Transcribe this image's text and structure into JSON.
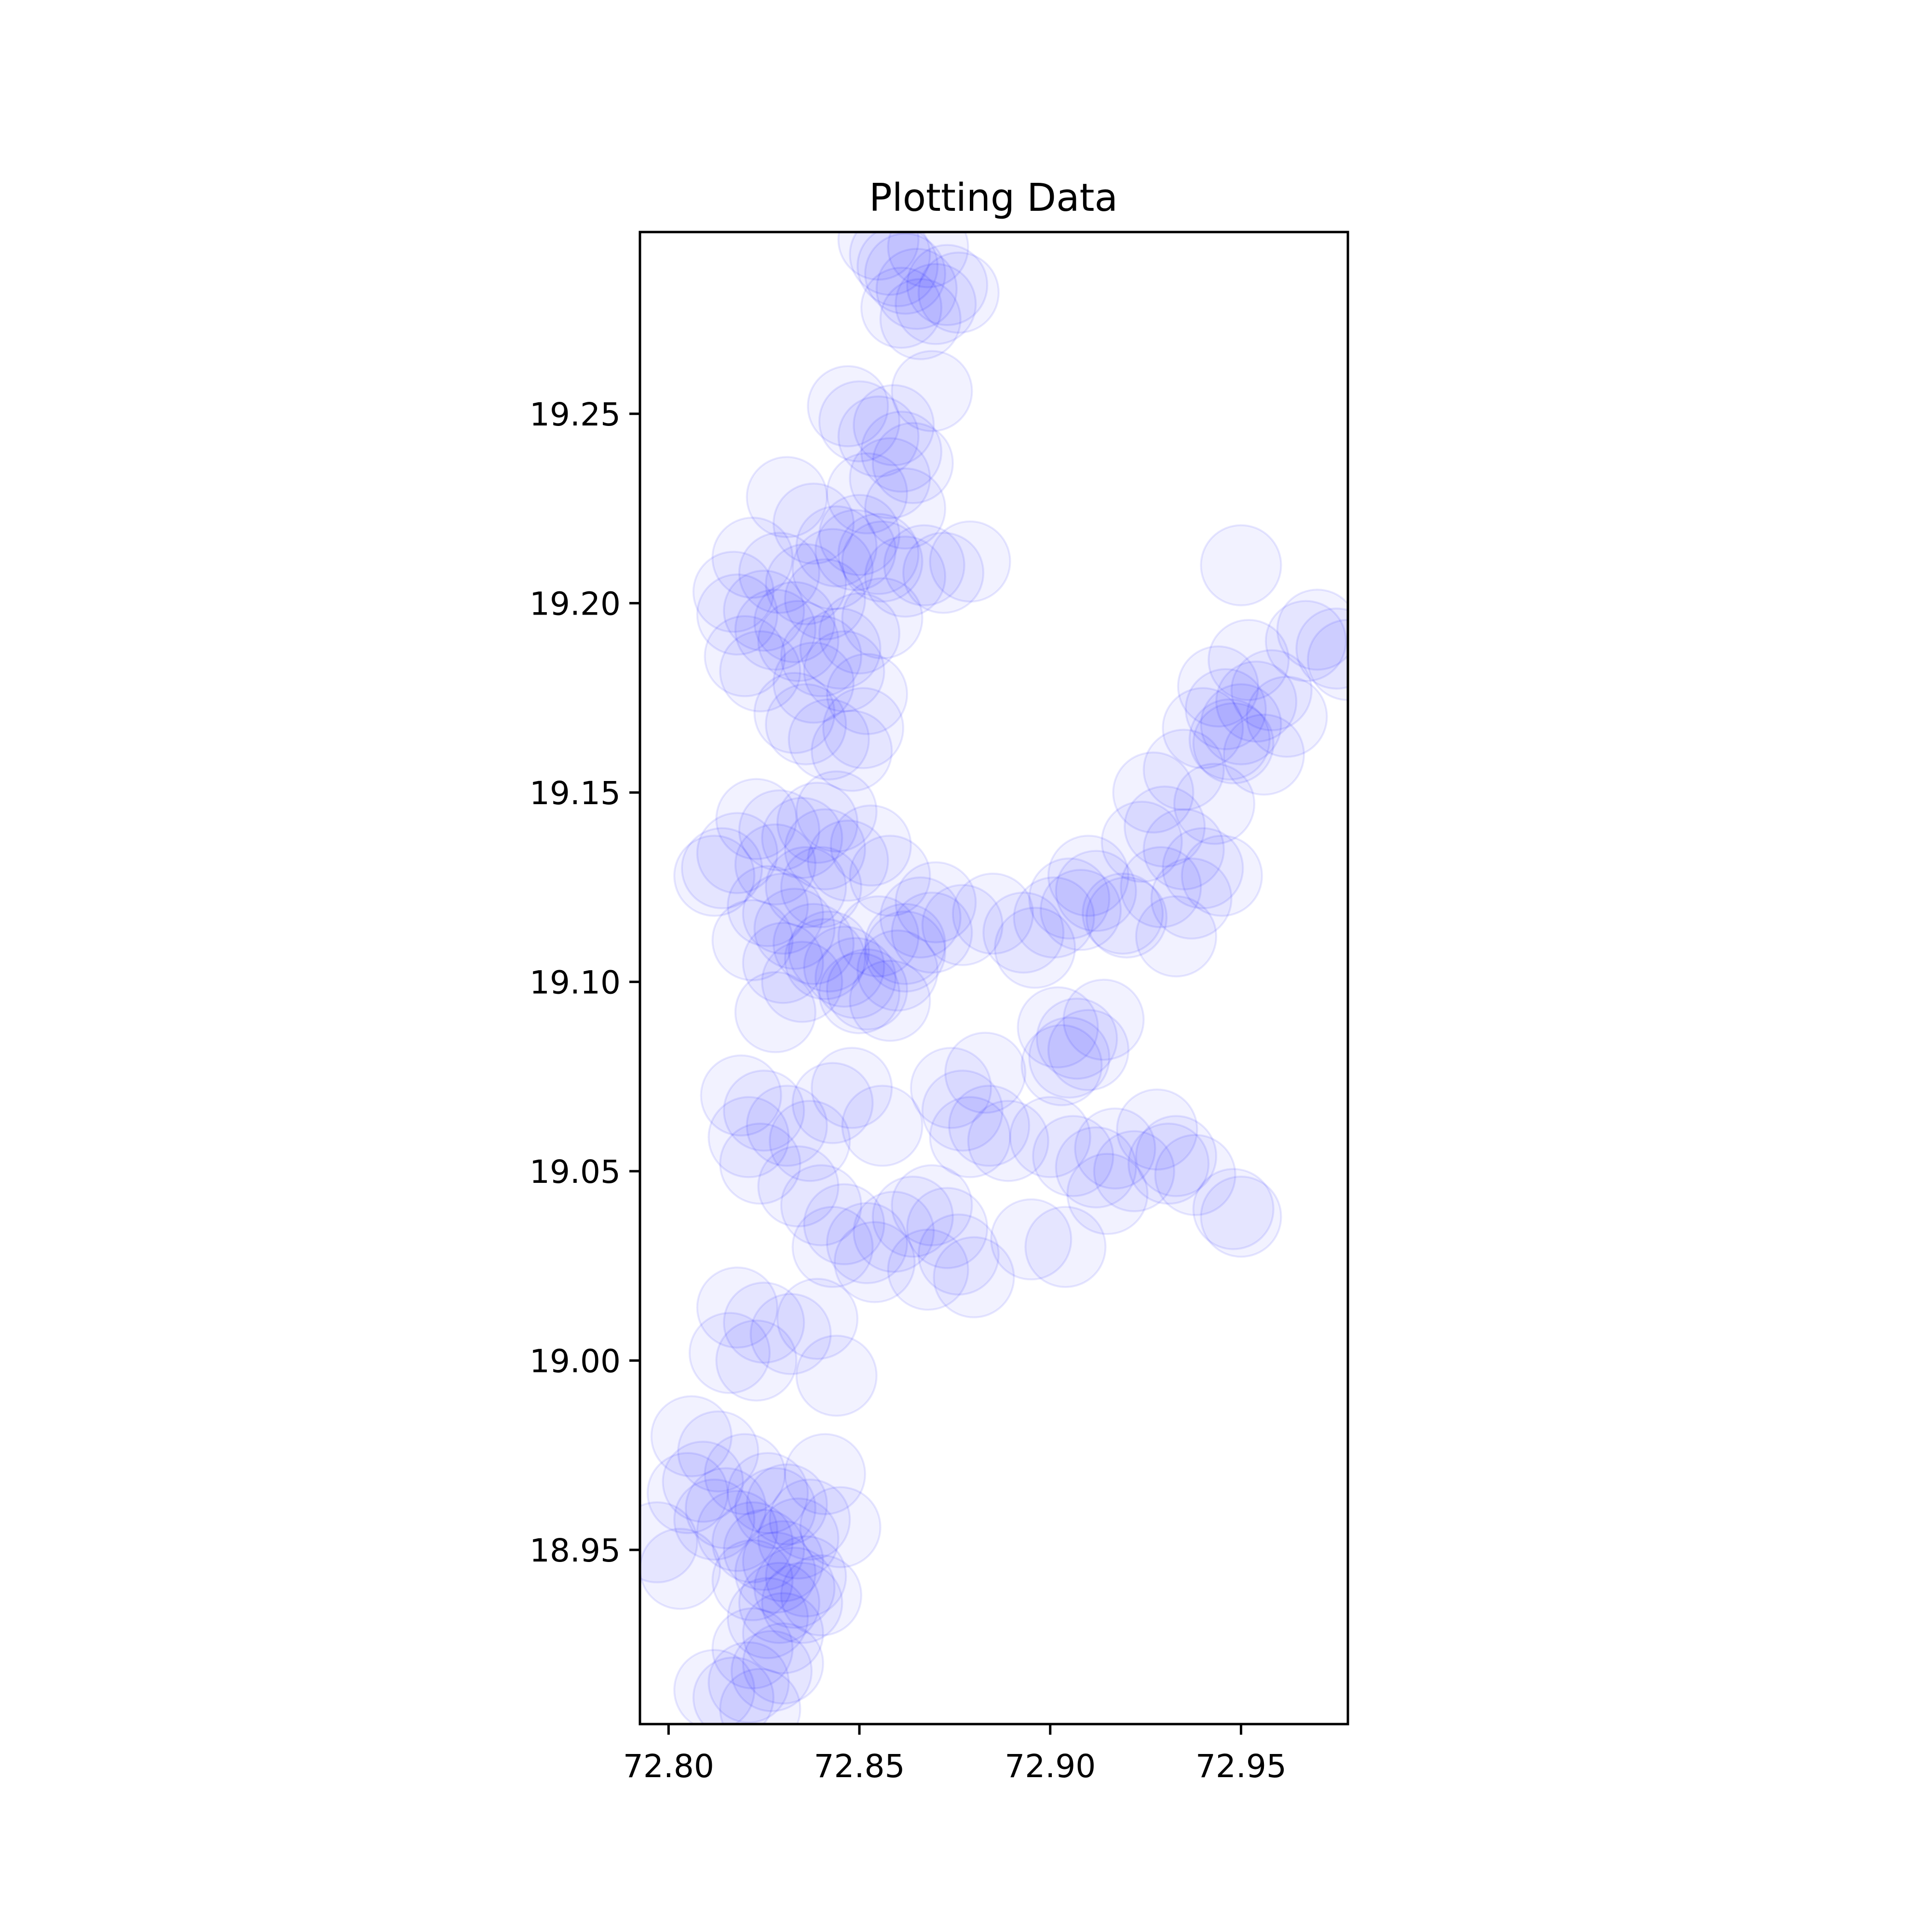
{
  "chart_data": {
    "type": "scatter",
    "title": "Plotting Data",
    "xlabel": "",
    "ylabel": "",
    "xlim": [
      72.7925,
      72.978
    ],
    "ylim": [
      18.904,
      19.298
    ],
    "grid": false,
    "legend": "none",
    "x_ticks": [
      "72.80",
      "72.85",
      "72.90",
      "72.95"
    ],
    "x_tick_values": [
      72.8,
      72.85,
      72.9,
      72.95
    ],
    "y_ticks": [
      "18.95",
      "19.00",
      "19.05",
      "19.10",
      "19.15",
      "19.20",
      "19.25"
    ],
    "y_tick_values": [
      18.95,
      19.0,
      19.05,
      19.1,
      19.15,
      19.2,
      19.25
    ],
    "marker": {
      "color": "#0000ff",
      "alpha": 0.05,
      "edgealpha": 0.09,
      "radius_data_x": 0.0105
    },
    "x": [
      72.862,
      72.865,
      72.87,
      72.858,
      72.861,
      72.866,
      72.873,
      72.855,
      72.86,
      72.868,
      72.876,
      72.85,
      72.855,
      72.861,
      72.847,
      72.858,
      72.864,
      72.852,
      72.859,
      72.869,
      72.838,
      72.844,
      72.85,
      72.856,
      72.831,
      72.862,
      72.822,
      72.829,
      72.836,
      72.843,
      72.849,
      72.817,
      72.825,
      72.833,
      72.841,
      72.855,
      72.862,
      72.867,
      72.872,
      72.879,
      72.828,
      72.834,
      72.84,
      72.845,
      72.85,
      72.82,
      72.838,
      72.846,
      72.852,
      72.824,
      72.856,
      72.818,
      72.836,
      72.842,
      72.848,
      72.851,
      72.833,
      72.823,
      72.829,
      72.835,
      72.841,
      72.847,
      72.818,
      72.828,
      72.839,
      72.853,
      72.814,
      72.858,
      72.844,
      72.812,
      72.836,
      72.826,
      72.833,
      72.838,
      72.841,
      72.846,
      72.849,
      72.852,
      72.858,
      72.822,
      72.83,
      72.855,
      72.862,
      72.866,
      72.87,
      72.877,
      72.885,
      72.84,
      72.83,
      72.835,
      72.842,
      72.828,
      72.862,
      72.869,
      72.86,
      72.85,
      72.819,
      72.825,
      72.831,
      72.837,
      72.843,
      72.821,
      72.848,
      72.824,
      72.856,
      72.834,
      72.84,
      72.846,
      72.852,
      72.859,
      72.864,
      72.869,
      72.873,
      72.843,
      72.854,
      72.868,
      72.876,
      72.88,
      72.818,
      72.825,
      72.832,
      72.839,
      72.816,
      72.823,
      72.844,
      72.806,
      72.813,
      72.82,
      72.826,
      72.831,
      72.837,
      72.834,
      72.828,
      72.845,
      72.841,
      72.809,
      72.822,
      72.797,
      72.803,
      72.812,
      72.818,
      72.825,
      72.83,
      72.836,
      72.815,
      72.829,
      72.833,
      72.822,
      72.805,
      72.826,
      72.83,
      72.835,
      72.822,
      72.828,
      72.84,
      72.827,
      72.821,
      72.817,
      72.83,
      72.824,
      72.812,
      72.877,
      72.884,
      72.889,
      72.874,
      72.879,
      72.883,
      72.893,
      72.901,
      72.905,
      72.908,
      72.912,
      72.919,
      72.896,
      72.91,
      72.902,
      72.907,
      72.91,
      72.903,
      72.914,
      72.905,
      72.9,
      72.906,
      72.912,
      72.917,
      72.922,
      72.928,
      72.933,
      72.938,
      72.948,
      72.895,
      72.904,
      72.915,
      72.931,
      72.95,
      72.924,
      72.93,
      72.935,
      72.94,
      72.929,
      72.937,
      72.945,
      72.92,
      72.933,
      72.943,
      72.927,
      72.935,
      72.94,
      72.946,
      72.95,
      72.954,
      72.958,
      72.962,
      72.948,
      72.956,
      72.952,
      72.944,
      72.97,
      72.975,
      72.978,
      72.967,
      72.95,
      72.947
    ],
    "y": [
      19.287,
      19.283,
      19.279,
      19.292,
      19.278,
      19.275,
      19.284,
      19.296,
      19.289,
      19.294,
      19.282,
      19.248,
      19.244,
      19.24,
      19.252,
      19.233,
      19.237,
      19.229,
      19.247,
      19.256,
      19.221,
      19.215,
      19.218,
      19.211,
      19.228,
      19.225,
      19.212,
      19.208,
      19.205,
      19.209,
      19.214,
      19.203,
      19.198,
      19.195,
      19.201,
      19.213,
      19.207,
      19.21,
      19.208,
      19.211,
      19.193,
      19.19,
      19.186,
      19.188,
      19.192,
      19.186,
      19.179,
      19.182,
      19.176,
      19.182,
      19.196,
      19.197,
      19.168,
      19.164,
      19.161,
      19.167,
      19.171,
      19.143,
      19.14,
      19.138,
      19.135,
      19.132,
      19.134,
      19.131,
      19.142,
      19.136,
      19.13,
      19.128,
      19.145,
      19.128,
      19.125,
      19.12,
      19.114,
      19.11,
      19.106,
      19.104,
      19.101,
      19.098,
      19.095,
      19.111,
      19.118,
      19.112,
      19.11,
      19.117,
      19.121,
      19.115,
      19.118,
      19.125,
      19.105,
      19.1,
      19.108,
      19.092,
      19.108,
      19.113,
      19.103,
      19.097,
      19.07,
      19.066,
      19.062,
      19.058,
      19.068,
      19.059,
      19.072,
      19.052,
      19.062,
      19.046,
      19.041,
      19.036,
      19.031,
      19.034,
      19.038,
      19.041,
      19.035,
      19.03,
      19.026,
      19.024,
      19.028,
      19.022,
      19.014,
      19.01,
      19.007,
      19.011,
      19.002,
      19.0,
      18.996,
      18.98,
      18.976,
      18.97,
      18.965,
      18.962,
      18.958,
      18.953,
      18.961,
      18.956,
      18.97,
      18.968,
      18.952,
      18.952,
      18.945,
      18.958,
      18.955,
      18.95,
      18.947,
      18.943,
      18.961,
      18.936,
      18.94,
      18.942,
      18.965,
      18.932,
      18.928,
      18.936,
      18.924,
      18.944,
      18.938,
      18.918,
      18.915,
      18.911,
      18.92,
      18.908,
      18.913,
      19.066,
      19.062,
      19.058,
      19.072,
      19.059,
      19.076,
      19.113,
      19.117,
      19.122,
      19.119,
      19.124,
      19.118,
      19.109,
      19.128,
      19.088,
      19.085,
      19.082,
      19.078,
      19.09,
      19.08,
      19.059,
      19.054,
      19.051,
      19.056,
      19.05,
      19.061,
      19.054,
      19.049,
      19.04,
      19.032,
      19.03,
      19.044,
      19.052,
      19.038,
      19.137,
      19.141,
      19.135,
      19.13,
      19.125,
      19.122,
      19.128,
      19.117,
      19.112,
      19.147,
      19.15,
      19.156,
      19.167,
      19.172,
      19.168,
      19.174,
      19.177,
      19.17,
      19.163,
      19.16,
      19.185,
      19.178,
      19.193,
      19.188,
      19.185,
      19.19,
      19.21,
      19.164
    ]
  }
}
